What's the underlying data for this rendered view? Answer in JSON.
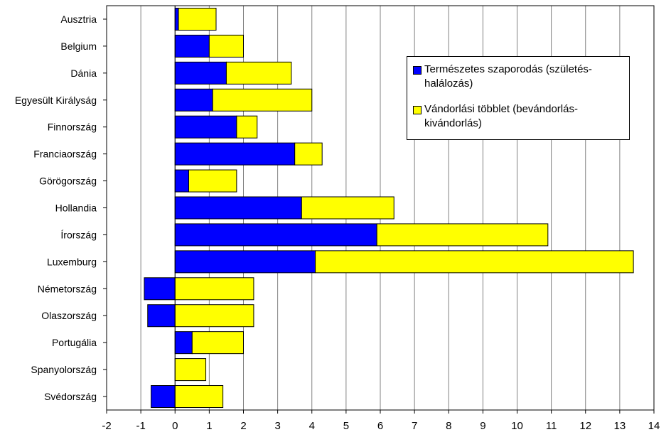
{
  "chart_data": {
    "type": "bar",
    "orientation": "horizontal",
    "stacked": true,
    "categories": [
      "Ausztria",
      "Belgium",
      "Dánia",
      "Egyesült Királyság",
      "Finnország",
      "Franciaország",
      "Görögország",
      "Hollandia",
      "Írország",
      "Luxemburg",
      "Németország",
      "Olaszország",
      "Portugália",
      "Spanyolország",
      "Svédország"
    ],
    "series": [
      {
        "name": "Természetes szaporodás (születés-halálozás)",
        "color": "#0000FF",
        "values": [
          0.1,
          1.0,
          1.5,
          1.1,
          1.8,
          3.5,
          0.4,
          3.7,
          5.9,
          4.1,
          -0.9,
          -0.8,
          0.5,
          0.0,
          -0.7
        ]
      },
      {
        "name": "Vándorlási többlet (bevándorlás-kivándorlás)",
        "color": "#FFFF00",
        "values": [
          1.1,
          1.0,
          1.9,
          2.9,
          0.6,
          0.8,
          1.4,
          2.7,
          5.0,
          9.3,
          2.3,
          2.3,
          1.5,
          0.9,
          1.4
        ]
      }
    ],
    "xlim": [
      -2,
      14
    ],
    "xticks": [
      "-2",
      "-1",
      "0",
      "1",
      "2",
      "3",
      "4",
      "5",
      "6",
      "7",
      "8",
      "9",
      "10",
      "11",
      "12",
      "13",
      "14"
    ],
    "grid": "vertical",
    "legend_position": "top-right",
    "title": "",
    "xlabel": "",
    "ylabel": ""
  }
}
